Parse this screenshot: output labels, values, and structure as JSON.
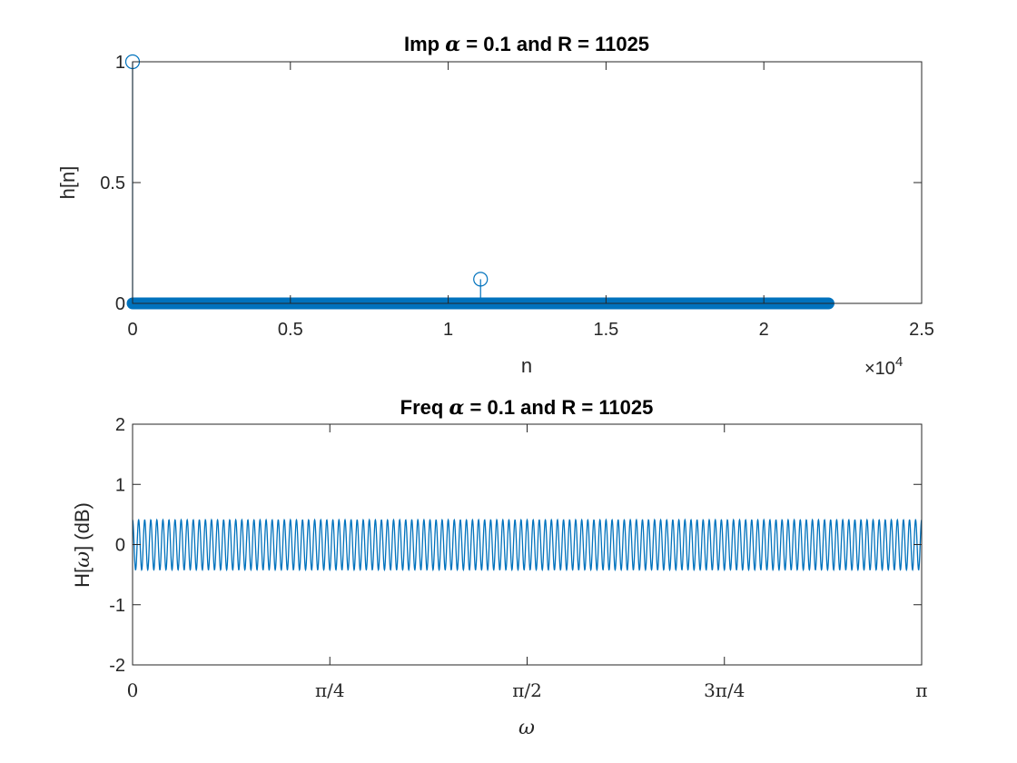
{
  "chart_data": [
    {
      "type": "stem",
      "title_prefix": "Imp ",
      "title_greek": "α",
      "title_suffix": " = 0.1 and R = 11025",
      "xlabel": "n",
      "ylabel": "h[n]",
      "xlim": [
        0,
        25000
      ],
      "ylim": [
        0,
        1
      ],
      "x_exponent_label": "×10",
      "x_exponent_power": "4",
      "x_ticks": [
        0,
        5000,
        10000,
        15000,
        20000,
        25000
      ],
      "x_tick_labels": [
        "0",
        "0.5",
        "1",
        "1.5",
        "2",
        "2.5"
      ],
      "y_ticks": [
        0,
        0.5,
        1
      ],
      "y_tick_labels": [
        "0",
        "0.5",
        "1"
      ],
      "stem_points": [
        {
          "n": 0,
          "h": 1
        },
        {
          "n": 11025,
          "h": 0.1
        }
      ],
      "zero_range": [
        0,
        22050
      ],
      "color": "#0072BD",
      "grid": false
    },
    {
      "type": "line",
      "title_prefix": "Freq ",
      "title_greek": "α",
      "title_suffix": " = 0.1 and R = 11025",
      "xlabel_greek": "ω",
      "ylabel_prefix": "H[",
      "ylabel_greek": "ω",
      "ylabel_suffix": "] (dB)",
      "xlim": [
        0,
        3.14159
      ],
      "ylim": [
        -2,
        2
      ],
      "x_ticks": [
        0,
        0.785398,
        1.570796,
        2.356194,
        3.14159
      ],
      "x_tick_labels": [
        "0",
        "π/4",
        "π/2",
        "3π/4",
        "π"
      ],
      "y_ticks": [
        -2,
        -1,
        0,
        1,
        2
      ],
      "y_tick_labels": [
        "-2",
        "-1",
        "0",
        "1",
        "2"
      ],
      "oscillation_cycles": 130,
      "amplitude_max_db": 0.41,
      "amplitude_min_db": -0.42,
      "color": "#0072BD",
      "grid": false
    }
  ]
}
